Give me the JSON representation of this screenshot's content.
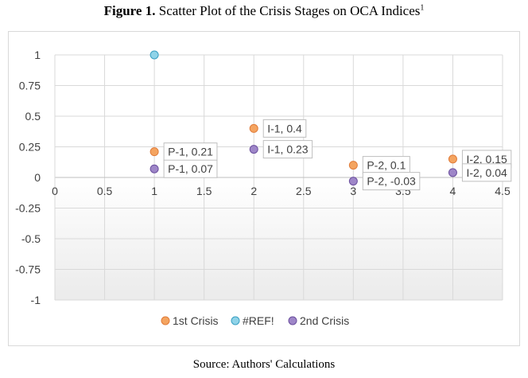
{
  "figure": {
    "title_bold": "Figure 1.",
    "title_rest": " Scatter Plot of the Crisis Stages on OCA Indices",
    "title_footnote": "1",
    "source": "Source: Authors' Calculations"
  },
  "chart_data": {
    "type": "scatter",
    "title": "",
    "xlabel": "",
    "ylabel": "",
    "xlim": [
      0,
      4.5
    ],
    "ylim": [
      -1,
      1
    ],
    "x_ticks": [
      0,
      0.5,
      1,
      1.5,
      2,
      2.5,
      3,
      3.5,
      4,
      4.5
    ],
    "y_ticks": [
      1,
      0.75,
      0.5,
      0.25,
      0,
      -0.25,
      -0.5,
      -0.75,
      -1
    ],
    "x_tick_labels": [
      "0",
      "0.5",
      "1",
      "1.5",
      "2",
      "2.5",
      "3",
      "3.5",
      "4",
      "4.5"
    ],
    "y_tick_labels": [
      "1",
      "0.75",
      "0.5",
      "0.25",
      "0",
      "-0.25",
      "-0.5",
      "-0.75",
      "-1"
    ],
    "grid": true,
    "legend_position": "bottom",
    "series": [
      {
        "name": "1st Crisis",
        "color": "#f4a460",
        "stroke": "#e07b39",
        "points": [
          {
            "x": 1,
            "y": 0.21,
            "label": "P-1, 0.21"
          },
          {
            "x": 2,
            "y": 0.4,
            "label": "I-1, 0.4"
          },
          {
            "x": 3,
            "y": 0.1,
            "label": "P-2, 0.1"
          },
          {
            "x": 4,
            "y": 0.15,
            "label": "I-2, 0.15"
          }
        ]
      },
      {
        "name": "#REF!",
        "color": "#8fd3e8",
        "stroke": "#3a9fc2",
        "points": [
          {
            "x": 1,
            "y": 1,
            "label": ""
          }
        ]
      },
      {
        "name": "2nd Crisis",
        "color": "#9e86c8",
        "stroke": "#6b4f9e",
        "points": [
          {
            "x": 1,
            "y": 0.07,
            "label": "P-1, 0.07"
          },
          {
            "x": 2,
            "y": 0.23,
            "label": "I-1, 0.23"
          },
          {
            "x": 3,
            "y": -0.03,
            "label": "P-2, -0.03"
          },
          {
            "x": 4,
            "y": 0.04,
            "label": "I-2, 0.04"
          }
        ]
      }
    ]
  }
}
